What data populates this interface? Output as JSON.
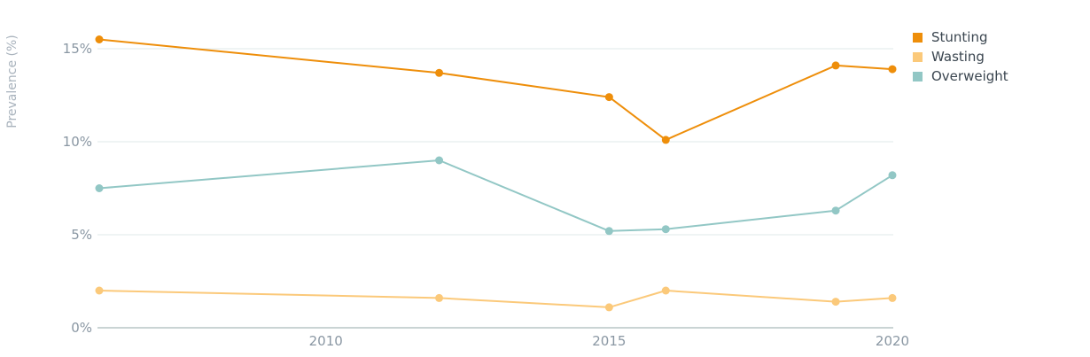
{
  "chart_data": {
    "type": "line",
    "ylabel": "Prevalence (%)",
    "xlim": [
      2005.95,
      2020.1
    ],
    "ylim": [
      0,
      16.5
    ],
    "x_ticks": [
      {
        "value": 2010,
        "label": "2010"
      },
      {
        "value": 2015,
        "label": "2015"
      },
      {
        "value": 2020,
        "label": "2020"
      }
    ],
    "y_ticks": [
      {
        "value": 0,
        "label": "0%"
      },
      {
        "value": 5,
        "label": "5%"
      },
      {
        "value": 10,
        "label": "10%"
      },
      {
        "value": 15,
        "label": "15%"
      }
    ],
    "grid": true,
    "legend_position": "top-right",
    "series": [
      {
        "name": "Stunting",
        "color": "#ee8e0a",
        "points": [
          [
            2006,
            15.5
          ],
          [
            2012,
            13.7
          ],
          [
            2015,
            12.4
          ],
          [
            2016,
            10.1
          ],
          [
            2019,
            14.1
          ],
          [
            2020,
            13.9
          ]
        ]
      },
      {
        "name": "Wasting",
        "color": "#fbc97a",
        "points": [
          [
            2006,
            2.0
          ],
          [
            2012,
            1.6
          ],
          [
            2015,
            1.1
          ],
          [
            2016,
            2.0
          ],
          [
            2019,
            1.4
          ],
          [
            2020,
            1.6
          ]
        ]
      },
      {
        "name": "Overweight",
        "color": "#92c7c5",
        "points": [
          [
            2006,
            7.5
          ],
          [
            2012,
            9.0
          ],
          [
            2015,
            5.2
          ],
          [
            2016,
            5.3
          ],
          [
            2019,
            6.3
          ],
          [
            2020,
            8.2
          ]
        ]
      }
    ]
  }
}
